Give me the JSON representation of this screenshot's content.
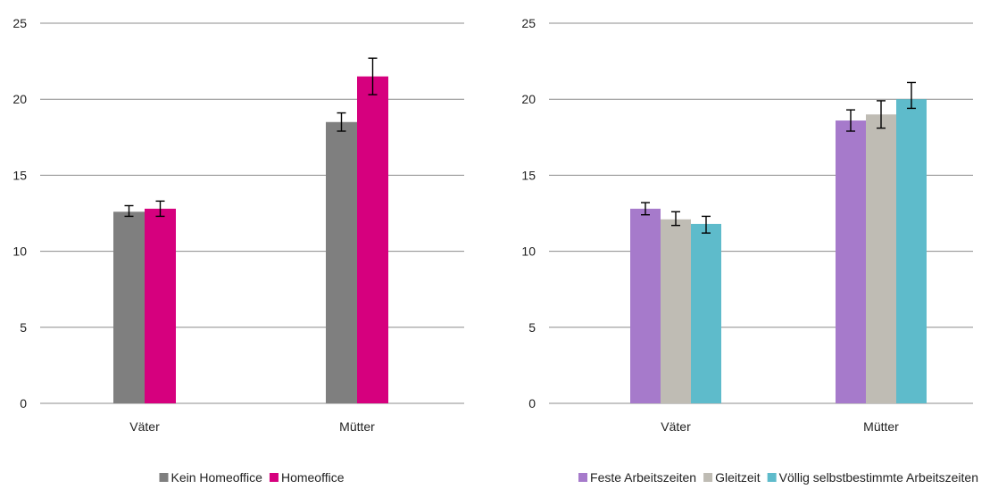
{
  "chart_data": [
    {
      "type": "bar",
      "ylim": [
        0,
        25
      ],
      "yticks": [
        "0",
        "5",
        "10",
        "15",
        "20",
        "25"
      ],
      "grid": true,
      "legend_position": "bottom",
      "categories": [
        "Väter",
        "Mütter"
      ],
      "series": [
        {
          "name": "Kein Homeoffice",
          "color": "#7f7f7f",
          "values": [
            12.6,
            18.5
          ],
          "err_low": [
            12.3,
            17.9
          ],
          "err_high": [
            13.0,
            19.1
          ]
        },
        {
          "name": "Homeoffice",
          "color": "#d6007e",
          "values": [
            12.8,
            21.5
          ],
          "err_low": [
            12.3,
            20.3
          ],
          "err_high": [
            13.3,
            22.7
          ]
        }
      ]
    },
    {
      "type": "bar",
      "ylim": [
        0,
        25
      ],
      "yticks": [
        "0",
        "5",
        "10",
        "15",
        "20",
        "25"
      ],
      "grid": true,
      "legend_position": "bottom",
      "categories": [
        "Väter",
        "Mütter"
      ],
      "series": [
        {
          "name": "Feste Arbeitszeiten",
          "color": "#a67acb",
          "values": [
            12.8,
            18.6
          ],
          "err_low": [
            12.4,
            17.9
          ],
          "err_high": [
            13.2,
            19.3
          ]
        },
        {
          "name": "Gleitzeit",
          "color": "#bfbcb4",
          "values": [
            12.1,
            19.0
          ],
          "err_low": [
            11.7,
            18.1
          ],
          "err_high": [
            12.6,
            19.9
          ]
        },
        {
          "name": "Völlig selbstbestimmte Arbeitszeiten",
          "color": "#5ebbcb",
          "values": [
            11.8,
            20.0
          ],
          "err_low": [
            11.2,
            19.4
          ],
          "err_high": [
            12.3,
            21.1
          ]
        }
      ]
    }
  ]
}
